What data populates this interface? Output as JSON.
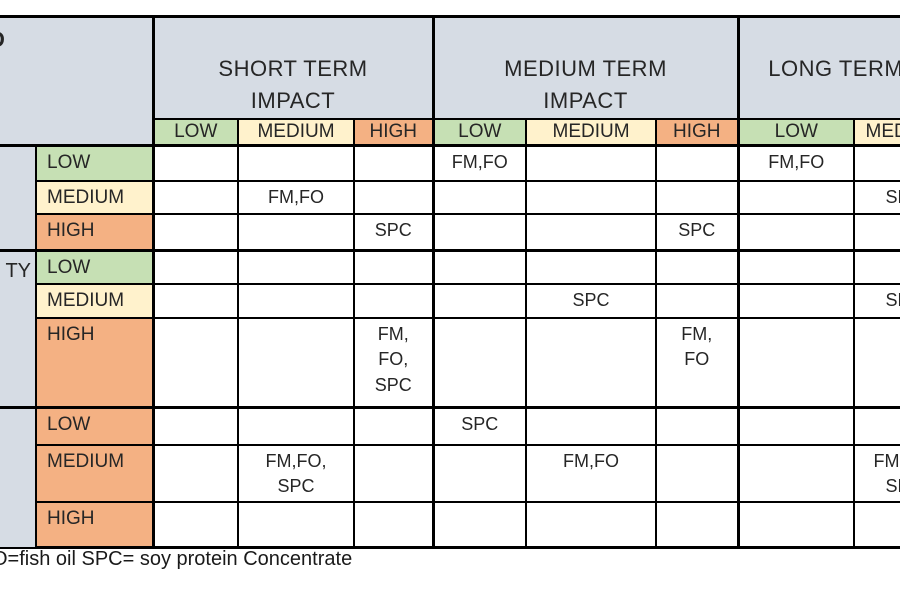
{
  "colors": {
    "header_bg": "#d6dce4",
    "impact_low": "#c6e0b4",
    "impact_medium": "#fff2cc",
    "impact_high": "#f4b183",
    "grid": "#000000",
    "cell_bg": "#ffffff"
  },
  "header": {
    "corner_fragment": "D",
    "column_groups": [
      {
        "key": "short-term",
        "label": "SHORT TERM\nIMPACT"
      },
      {
        "key": "medium-term",
        "label": "MEDIUM TERM\nIMPACT"
      },
      {
        "key": "long-term",
        "label": "LONG TERM IMPACT"
      }
    ],
    "impact_levels": [
      "LOW",
      "MEDIUM",
      "HIGH"
    ]
  },
  "row_groups": [
    {
      "label_fragment": "",
      "rows": [
        {
          "level": "LOW",
          "tone": "low",
          "cells": [
            "",
            "",
            "",
            "FM,FO",
            "",
            "",
            "FM,FO",
            "",
            ""
          ]
        },
        {
          "level": "MEDIUM",
          "tone": "med",
          "cells": [
            "",
            "FM,FO",
            "",
            "",
            "",
            "",
            "",
            "SPC",
            ""
          ]
        },
        {
          "level": "HIGH",
          "tone": "high",
          "cells": [
            "",
            "",
            "SPC",
            "",
            "",
            "SPC",
            "",
            "",
            ""
          ]
        }
      ]
    },
    {
      "label_fragment": "TY",
      "rows": [
        {
          "level": "LOW",
          "tone": "low",
          "cells": [
            "",
            "",
            "",
            "",
            "",
            "",
            "",
            "",
            ""
          ]
        },
        {
          "level": "MEDIUM",
          "tone": "med",
          "cells": [
            "",
            "",
            "",
            "",
            "SPC",
            "",
            "",
            "SPC",
            ""
          ]
        },
        {
          "level": "HIGH",
          "tone": "high",
          "cells": [
            "",
            "",
            "FM,\nFO,\nSPC",
            "",
            "",
            "FM,\nFO",
            "",
            "",
            ""
          ]
        }
      ]
    },
    {
      "label_fragment": "",
      "rows": [
        {
          "level": "LOW",
          "tone": "high",
          "cells": [
            "",
            "",
            "",
            "SPC",
            "",
            "",
            "",
            "",
            ""
          ]
        },
        {
          "level": "MEDIUM",
          "tone": "high",
          "cells": [
            "",
            "FM,FO,\nSPC",
            "",
            "",
            "FM,FO",
            "",
            "",
            "FM,FO,\nSPC",
            ""
          ]
        },
        {
          "level": "HIGH",
          "tone": "high",
          "cells": [
            "",
            "",
            "",
            "",
            "",
            "",
            "",
            "",
            ""
          ]
        }
      ]
    }
  ],
  "legend": "O=fish oil SPC= soy protein Concentrate"
}
